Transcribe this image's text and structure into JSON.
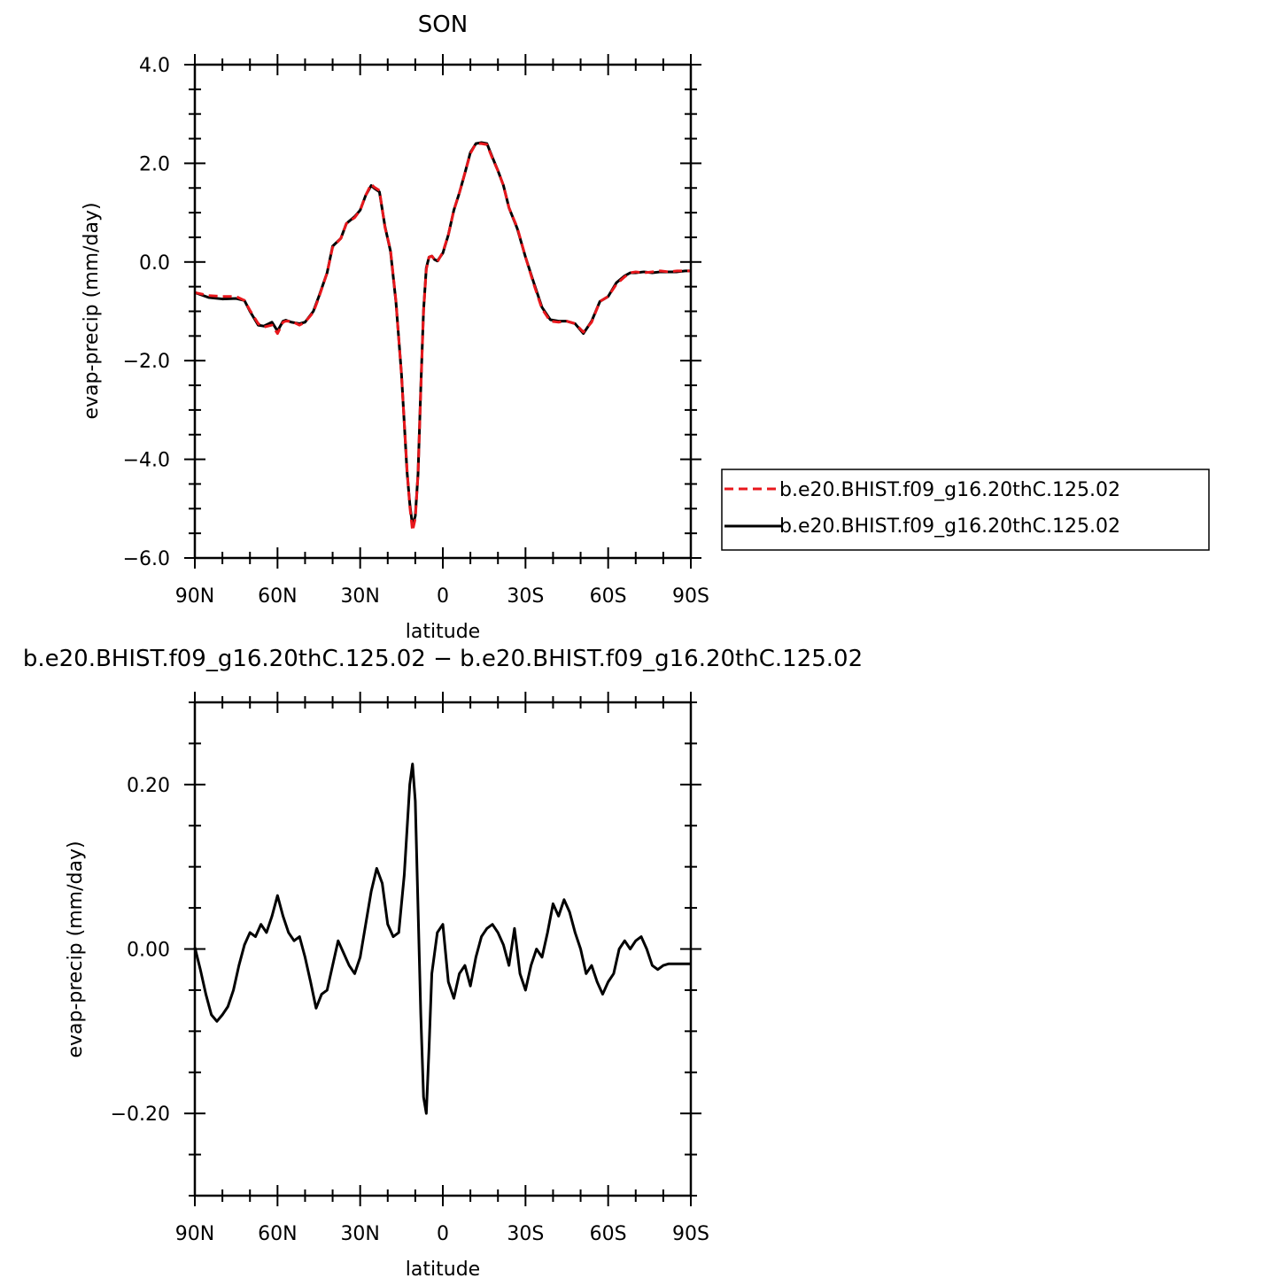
{
  "chart_data": [
    {
      "type": "line",
      "title": "SON",
      "xlabel": "latitude",
      "ylabel": "evap-precip (mm/day)",
      "ylim": [
        -6.0,
        4.0
      ],
      "xlim": [
        90,
        -90
      ],
      "x_ticks": [
        90,
        60,
        30,
        0,
        -30,
        -60,
        -90
      ],
      "x_tick_labels": [
        "90N",
        "60N",
        "30N",
        "0",
        "30S",
        "60S",
        "90S"
      ],
      "y_ticks": [
        -6.0,
        -4.0,
        -2.0,
        0.0,
        2.0,
        4.0
      ],
      "y_tick_labels": [
        "−6.0",
        "−4.0",
        "−2.0",
        "0.0",
        "2.0",
        "4.0"
      ],
      "legend_position": "right",
      "x": [
        90,
        85,
        80,
        75,
        72,
        70,
        67,
        65,
        62,
        60,
        58,
        57,
        55,
        52,
        50,
        47,
        45,
        42,
        40,
        37,
        35,
        32,
        30,
        28,
        26,
        25,
        23,
        21,
        19,
        17,
        15,
        13,
        12,
        11,
        10,
        9,
        8,
        7,
        6,
        5,
        4,
        3,
        2,
        0,
        -2,
        -4,
        -6,
        -8,
        -10,
        -12,
        -14,
        -16,
        -18,
        -20,
        -22,
        -24,
        -27,
        -30,
        -33,
        -36,
        -39,
        -42,
        -45,
        -48,
        -51,
        -54,
        -57,
        -60,
        -63,
        -66,
        -68,
        -70,
        -73,
        -76,
        -79,
        -82,
        -85,
        -88,
        -90
      ],
      "series": [
        {
          "name": "b.e20.BHIST.f09_g16.20thC.125.02",
          "style": "dashed",
          "color": "#e8171c",
          "values": [
            -0.62,
            -0.68,
            -0.7,
            -0.7,
            -0.78,
            -0.98,
            -1.25,
            -1.32,
            -1.28,
            -1.45,
            -1.22,
            -1.2,
            -1.2,
            -1.28,
            -1.22,
            -1.02,
            -0.72,
            -0.22,
            0.3,
            0.48,
            0.78,
            0.9,
            1.05,
            1.35,
            1.58,
            1.52,
            1.45,
            0.7,
            0.25,
            -0.8,
            -2.3,
            -4.2,
            -4.95,
            -5.45,
            -5.2,
            -4.3,
            -2.6,
            -1.0,
            -0.15,
            0.1,
            0.12,
            0.05,
            0.0,
            0.2,
            0.55,
            1.05,
            1.4,
            1.8,
            2.2,
            2.4,
            2.4,
            2.38,
            2.1,
            1.85,
            1.55,
            1.1,
            0.7,
            0.1,
            -0.45,
            -0.95,
            -1.2,
            -1.22,
            -1.2,
            -1.25,
            -1.42,
            -1.22,
            -0.8,
            -0.7,
            -0.45,
            -0.3,
            -0.22,
            -0.2,
            -0.22,
            -0.2,
            -0.18,
            -0.2,
            -0.18,
            -0.18,
            -0.18
          ]
        },
        {
          "name": "b.e20.BHIST.f09_g16.20thC.125.02",
          "style": "solid",
          "color": "#000000",
          "values": [
            -0.62,
            -0.72,
            -0.75,
            -0.74,
            -0.78,
            -1.0,
            -1.28,
            -1.3,
            -1.22,
            -1.4,
            -1.2,
            -1.18,
            -1.22,
            -1.25,
            -1.22,
            -1.0,
            -0.7,
            -0.22,
            0.32,
            0.48,
            0.78,
            0.92,
            1.05,
            1.35,
            1.55,
            1.5,
            1.42,
            0.72,
            0.22,
            -0.82,
            -2.28,
            -4.25,
            -4.9,
            -5.35,
            -5.15,
            -4.3,
            -2.55,
            -0.98,
            -0.12,
            0.1,
            0.12,
            0.05,
            0.02,
            0.18,
            0.55,
            1.05,
            1.4,
            1.8,
            2.22,
            2.4,
            2.42,
            2.4,
            2.12,
            1.85,
            1.55,
            1.1,
            0.68,
            0.1,
            -0.42,
            -0.92,
            -1.17,
            -1.2,
            -1.2,
            -1.25,
            -1.45,
            -1.2,
            -0.8,
            -0.7,
            -0.42,
            -0.28,
            -0.22,
            -0.22,
            -0.2,
            -0.22,
            -0.2,
            -0.2,
            -0.2,
            -0.18,
            -0.18
          ]
        }
      ]
    },
    {
      "type": "line",
      "title": "b.e20.BHIST.f09_g16.20thC.125.02 − b.e20.BHIST.f09_g16.20thC.125.02",
      "xlabel": "latitude",
      "ylabel": "evap-precip (mm/day)",
      "ylim": [
        -0.3,
        0.3
      ],
      "xlim": [
        90,
        -90
      ],
      "x_ticks": [
        90,
        60,
        30,
        0,
        -30,
        -60,
        -90
      ],
      "x_tick_labels": [
        "90N",
        "60N",
        "30N",
        "0",
        "30S",
        "60S",
        "90S"
      ],
      "y_ticks": [
        -0.2,
        0.0,
        0.2
      ],
      "y_tick_labels": [
        "−0.20",
        "0.00",
        "0.20"
      ],
      "series": [
        {
          "style": "solid",
          "color": "#000000",
          "x": [
            90,
            88,
            86,
            84,
            82,
            80,
            78,
            76,
            74,
            72,
            70,
            68,
            66,
            64,
            62,
            60,
            58,
            56,
            54,
            52,
            50,
            48,
            46,
            44,
            42,
            40,
            38,
            36,
            34,
            32,
            30,
            28,
            26,
            24,
            22,
            20,
            18,
            16,
            14,
            12,
            11,
            10,
            9,
            8,
            7,
            6,
            5,
            4,
            2,
            0,
            -2,
            -4,
            -6,
            -8,
            -10,
            -12,
            -14,
            -16,
            -18,
            -20,
            -22,
            -24,
            -26,
            -28,
            -30,
            -32,
            -34,
            -36,
            -38,
            -40,
            -42,
            -44,
            -46,
            -48,
            -50,
            -52,
            -54,
            -56,
            -58,
            -60,
            -62,
            -64,
            -66,
            -68,
            -70,
            -72,
            -74,
            -76,
            -78,
            -80,
            -82,
            -84,
            -86,
            -88,
            -90
          ],
          "values": [
            0.002,
            -0.025,
            -0.055,
            -0.08,
            -0.088,
            -0.08,
            -0.07,
            -0.05,
            -0.02,
            0.005,
            0.02,
            0.015,
            0.03,
            0.02,
            0.04,
            0.065,
            0.04,
            0.02,
            0.01,
            0.015,
            -0.01,
            -0.04,
            -0.072,
            -0.055,
            -0.05,
            -0.02,
            0.01,
            -0.005,
            -0.02,
            -0.03,
            -0.01,
            0.03,
            0.07,
            0.098,
            0.08,
            0.03,
            0.015,
            0.02,
            0.09,
            0.2,
            0.225,
            0.18,
            0.05,
            -0.08,
            -0.18,
            -0.2,
            -0.12,
            -0.03,
            0.02,
            0.03,
            -0.04,
            -0.06,
            -0.03,
            -0.02,
            -0.045,
            -0.01,
            0.015,
            0.025,
            0.03,
            0.02,
            0.005,
            -0.02,
            0.025,
            -0.03,
            -0.05,
            -0.02,
            0.0,
            -0.01,
            0.02,
            0.055,
            0.04,
            0.06,
            0.045,
            0.02,
            0.0,
            -0.03,
            -0.02,
            -0.04,
            -0.055,
            -0.04,
            -0.03,
            0.0,
            0.01,
            0.0,
            0.01,
            0.015,
            0.0,
            -0.02,
            -0.025,
            -0.02,
            -0.018,
            -0.018,
            -0.018,
            -0.018,
            -0.018
          ]
        }
      ]
    }
  ]
}
